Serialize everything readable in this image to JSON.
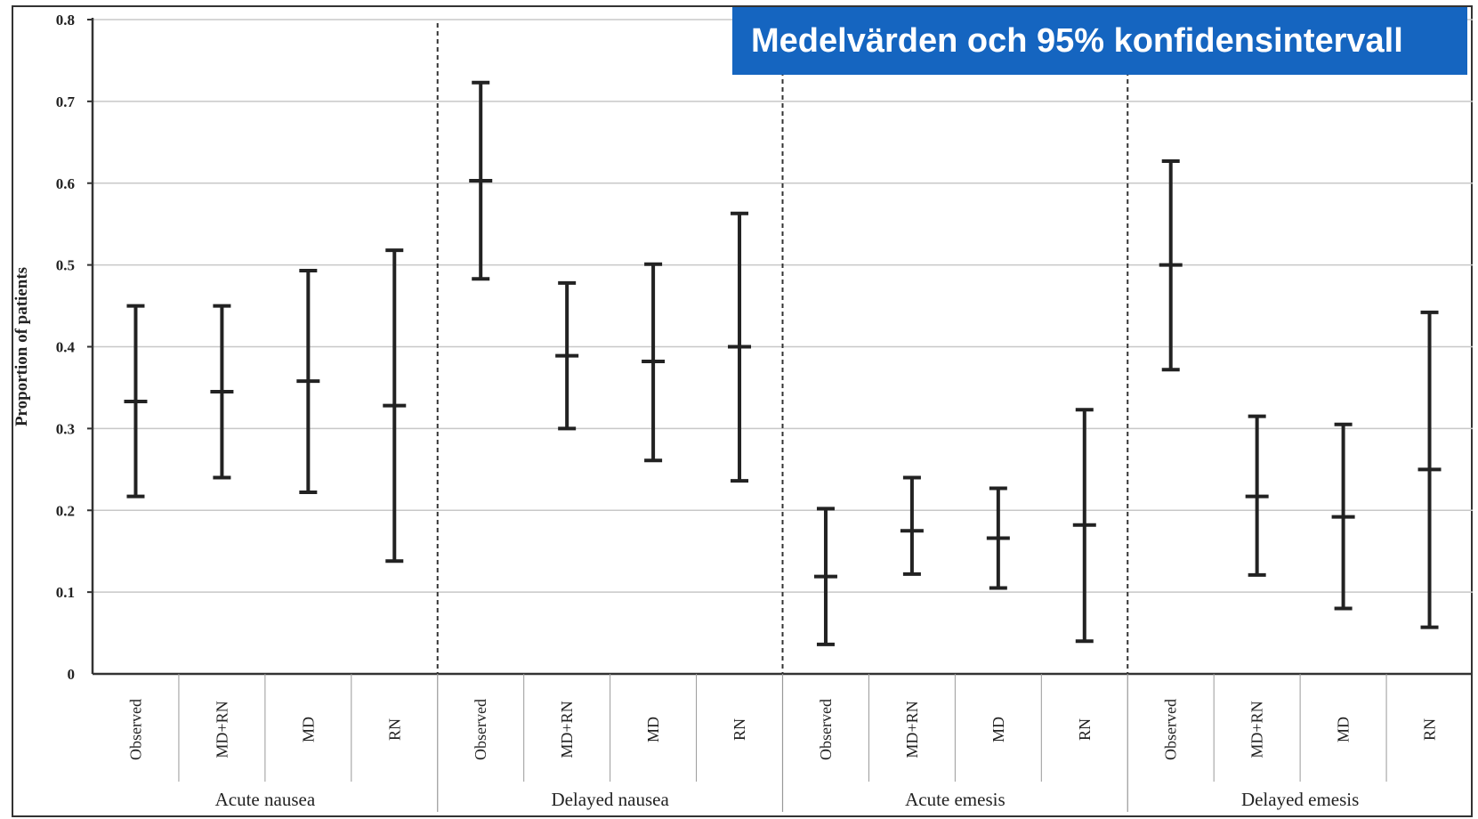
{
  "chart_data": {
    "type": "errorbar",
    "title": "Medelvärden och 95% konfidensintervall",
    "ylabel": "Proportion of patients",
    "xlabel": "",
    "ylim": [
      0,
      0.8
    ],
    "yticks": [
      "0",
      "0.1",
      "0.2",
      "0.3",
      "0.4",
      "0.5",
      "0.6",
      "0.7",
      "0.8"
    ],
    "grid": true,
    "accent_color": "#1565c0",
    "groups": [
      {
        "name": "Acute nausea",
        "items": [
          {
            "label": "Observed",
            "mean": 0.333,
            "lower": 0.217,
            "upper": 0.45
          },
          {
            "label": "MD+RN",
            "mean": 0.345,
            "lower": 0.24,
            "upper": 0.45
          },
          {
            "label": "MD",
            "mean": 0.358,
            "lower": 0.222,
            "upper": 0.493
          },
          {
            "label": "RN",
            "mean": 0.328,
            "lower": 0.138,
            "upper": 0.518
          }
        ]
      },
      {
        "name": "Delayed nausea",
        "items": [
          {
            "label": "Observed",
            "mean": 0.603,
            "lower": 0.483,
            "upper": 0.723
          },
          {
            "label": "MD+RN",
            "mean": 0.389,
            "lower": 0.3,
            "upper": 0.478
          },
          {
            "label": "MD",
            "mean": 0.382,
            "lower": 0.261,
            "upper": 0.501
          },
          {
            "label": "RN",
            "mean": 0.4,
            "lower": 0.236,
            "upper": 0.563
          }
        ]
      },
      {
        "name": "Acute emesis",
        "items": [
          {
            "label": "Observed",
            "mean": 0.119,
            "lower": 0.036,
            "upper": 0.202
          },
          {
            "label": "MD+RN",
            "mean": 0.175,
            "lower": 0.122,
            "upper": 0.24
          },
          {
            "label": "MD",
            "mean": 0.166,
            "lower": 0.105,
            "upper": 0.227
          },
          {
            "label": "RN",
            "mean": 0.182,
            "lower": 0.04,
            "upper": 0.323
          }
        ]
      },
      {
        "name": "Delayed emesis",
        "items": [
          {
            "label": "Observed",
            "mean": 0.5,
            "lower": 0.372,
            "upper": 0.627
          },
          {
            "label": "MD+RN",
            "mean": 0.217,
            "lower": 0.121,
            "upper": 0.315
          },
          {
            "label": "MD",
            "mean": 0.192,
            "lower": 0.08,
            "upper": 0.305
          },
          {
            "label": "RN",
            "mean": 0.25,
            "lower": 0.057,
            "upper": 0.442
          }
        ]
      }
    ]
  }
}
